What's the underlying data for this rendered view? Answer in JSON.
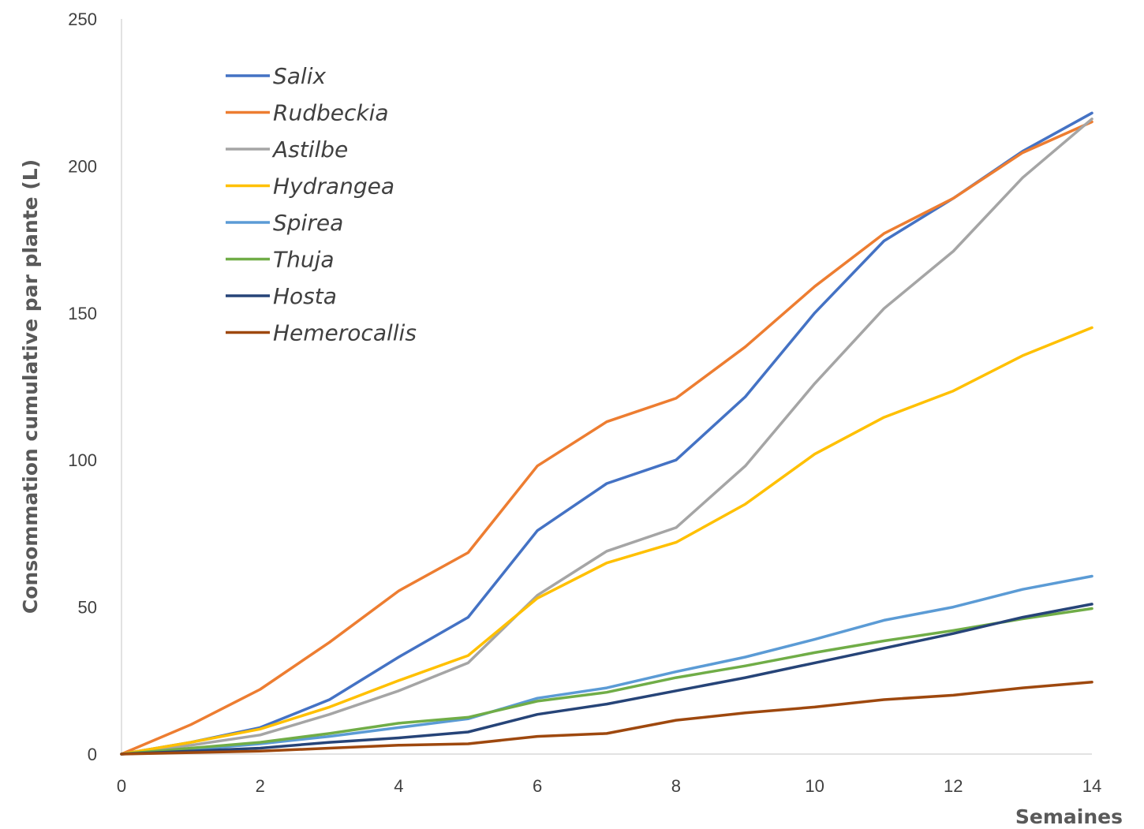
{
  "chart_data": {
    "type": "line",
    "title": "",
    "xlabel": "Semaines",
    "ylabel": "Consommation cumulative par plante (L)",
    "xlim": [
      0,
      14
    ],
    "ylim": [
      0,
      250
    ],
    "x_ticks": [
      "0",
      "2",
      "4",
      "6",
      "8",
      "10",
      "12",
      "14"
    ],
    "y_ticks": [
      "0",
      "50",
      "100",
      "150",
      "200",
      "250"
    ],
    "grid": false,
    "legend_position": "top-left",
    "x": [
      0,
      1,
      2,
      3,
      4,
      5,
      6,
      7,
      8,
      9,
      10,
      11,
      12,
      13,
      14
    ],
    "series": [
      {
        "name": "Salix",
        "color": "#4472C4",
        "values": [
          0,
          4,
          9,
          18.5,
          33,
          46.5,
          76,
          92,
          100,
          121.5,
          150,
          174.5,
          189,
          205,
          218
        ]
      },
      {
        "name": "Rudbeckia",
        "color": "#ED7D31",
        "values": [
          0,
          10,
          22,
          38,
          55.5,
          68.5,
          98,
          113,
          121,
          138.5,
          159,
          177,
          189,
          204.5,
          215
        ]
      },
      {
        "name": "Astilbe",
        "color": "#A5A5A5",
        "values": [
          0,
          3,
          6.5,
          13.5,
          21.5,
          31,
          54,
          69,
          77,
          98,
          126,
          151.5,
          171,
          196,
          216
        ]
      },
      {
        "name": "Hydrangea",
        "color": "#FFC000",
        "values": [
          0,
          4,
          8.5,
          16,
          25,
          33.5,
          53,
          65,
          72,
          85,
          102,
          114.5,
          123.5,
          135.5,
          145
        ]
      },
      {
        "name": "Spirea",
        "color": "#5B9BD5",
        "values": [
          0,
          1.5,
          3.5,
          6,
          9,
          12,
          19,
          22.5,
          28,
          33,
          39,
          45.5,
          50,
          56,
          60.5
        ]
      },
      {
        "name": "Thuja",
        "color": "#70AD47",
        "values": [
          0,
          2,
          4,
          7,
          10.5,
          12.5,
          18,
          21,
          26,
          30,
          34.5,
          38.5,
          42,
          46,
          49.5
        ]
      },
      {
        "name": "Hosta",
        "color": "#264478",
        "values": [
          0,
          1,
          2,
          4,
          5.5,
          7.5,
          13.5,
          17,
          21.5,
          26,
          31,
          36,
          41,
          46.5,
          51
        ]
      },
      {
        "name": "Hemerocallis",
        "color": "#9E480E",
        "values": [
          0,
          0.5,
          1,
          2,
          3,
          3.5,
          6,
          7,
          11.5,
          14,
          16,
          18.5,
          20,
          22.5,
          24.5
        ]
      }
    ]
  }
}
